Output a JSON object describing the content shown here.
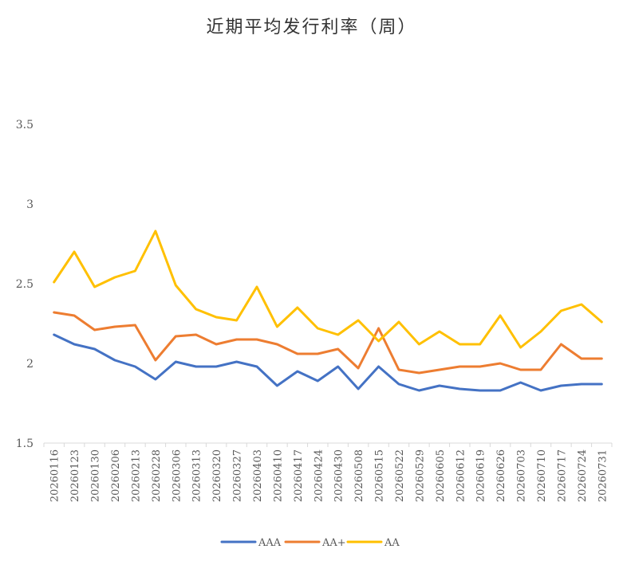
{
  "chart_data": {
    "type": "line",
    "title": "近期平均发行利率（周）",
    "xlabel": "",
    "ylabel": "",
    "ylim": [
      1.5,
      3.5
    ],
    "yticks": [
      "1.5",
      "2",
      "2.5",
      "3",
      "3.5"
    ],
    "grid": false,
    "legend_position": "bottom",
    "categories": [
      "20260116",
      "20260123",
      "20260130",
      "20260206",
      "20260213",
      "20260228",
      "20260306",
      "20260313",
      "20260320",
      "20260327",
      "20260403",
      "20260410",
      "20260417",
      "20260424",
      "20260430",
      "20260508",
      "20260515",
      "20260522",
      "20260529",
      "20260605",
      "20260612",
      "20260619",
      "20260626",
      "20260703",
      "20260710",
      "20260717",
      "20260724",
      "20260731"
    ],
    "series": [
      {
        "name": "AAA",
        "color": "#4472C4",
        "values": [
          2.18,
          2.12,
          2.09,
          2.02,
          1.98,
          1.9,
          2.01,
          1.98,
          1.98,
          2.01,
          1.98,
          1.86,
          1.95,
          1.89,
          1.98,
          1.84,
          1.98,
          1.87,
          1.83,
          1.86,
          1.84,
          1.83,
          1.83,
          1.88,
          1.83,
          1.86,
          1.87,
          1.87
        ]
      },
      {
        "name": "AA+",
        "color": "#ED7D31",
        "values": [
          2.32,
          2.3,
          2.21,
          2.23,
          2.24,
          2.02,
          2.17,
          2.18,
          2.12,
          2.15,
          2.15,
          2.12,
          2.06,
          2.06,
          2.09,
          1.97,
          2.22,
          1.96,
          1.94,
          1.96,
          1.98,
          1.98,
          2.0,
          1.96,
          1.96,
          2.12,
          2.03,
          2.03
        ]
      },
      {
        "name": "AA",
        "color": "#FFC000",
        "values": [
          2.51,
          2.7,
          2.48,
          2.54,
          2.58,
          2.83,
          2.49,
          2.34,
          2.29,
          2.27,
          2.48,
          2.23,
          2.35,
          2.22,
          2.18,
          2.27,
          2.14,
          2.26,
          2.12,
          2.2,
          2.12,
          2.12,
          2.3,
          2.1,
          2.2,
          2.33,
          2.37,
          2.26
        ]
      }
    ]
  }
}
